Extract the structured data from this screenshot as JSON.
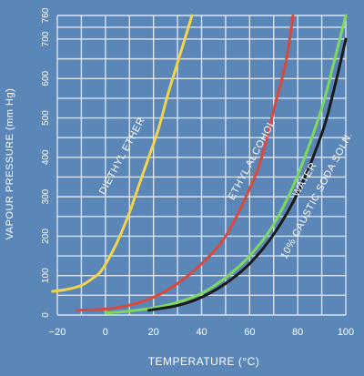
{
  "colors": {
    "background": "#5b86b8",
    "grid": "#e8eef6",
    "text": "#ffffff"
  },
  "chart_data": {
    "type": "line",
    "xlabel": "TEMPERATURE (°C)",
    "ylabel": "VAPOUR PRESSURE (mm Hg)",
    "xlim": [
      -20,
      100
    ],
    "ylim": [
      0,
      760
    ],
    "xticks": [
      -20,
      0,
      20,
      40,
      60,
      80,
      100
    ],
    "yticks": [
      0,
      100,
      200,
      300,
      400,
      500,
      600,
      700,
      760
    ],
    "xticks_minor": [
      -10,
      10,
      30,
      50,
      70,
      90
    ],
    "yticks_minor": [
      50,
      150,
      250,
      350,
      450,
      550,
      650,
      730
    ],
    "grid": true,
    "series": [
      {
        "name": "DIETHYL ETHER",
        "color": "#f2d44a",
        "x": [
          -22,
          -16,
          -10,
          -6,
          -2,
          2,
          6,
          10,
          14,
          18,
          22,
          26,
          30,
          34,
          36
        ],
        "y": [
          60,
          65,
          75,
          90,
          110,
          150,
          200,
          260,
          330,
          400,
          470,
          560,
          640,
          720,
          760
        ]
      },
      {
        "name": "ETHYL ALCOHOL",
        "color": "#d84a3c",
        "x": [
          -12,
          0,
          10,
          20,
          30,
          40,
          50,
          60,
          65,
          70,
          75,
          78
        ],
        "y": [
          12,
          15,
          25,
          45,
          80,
          130,
          200,
          320,
          400,
          520,
          640,
          760
        ]
      },
      {
        "name": "WATER",
        "color": "#7ed860",
        "x": [
          0,
          10,
          20,
          30,
          40,
          50,
          60,
          70,
          80,
          90,
          95,
          100
        ],
        "y": [
          5,
          10,
          18,
          32,
          55,
          95,
          150,
          230,
          355,
          525,
          640,
          760
        ]
      },
      {
        "name": "10% CAUSTIC SODA SOLN.",
        "color": "#1a1a1a",
        "x": [
          18,
          30,
          40,
          50,
          60,
          70,
          80,
          90,
          95,
          100
        ],
        "y": [
          12,
          24,
          45,
          80,
          130,
          205,
          310,
          460,
          570,
          700
        ]
      }
    ]
  }
}
